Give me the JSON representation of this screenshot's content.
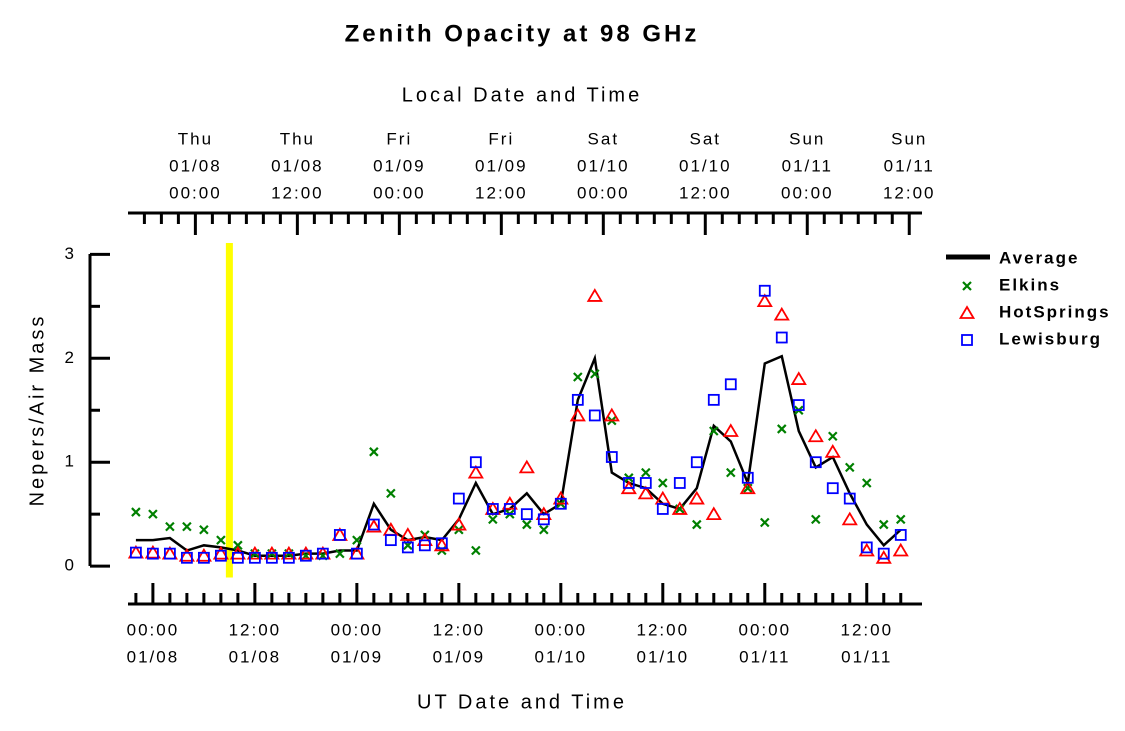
{
  "chart_data": {
    "type": "line",
    "title": "Zenith Opacity at 98 GHz",
    "x2label": "Local Date and Time",
    "xlabel": "UT Date and Time",
    "ylabel": "Nepers/Air Mass",
    "xlim": [
      -3,
      90.5
    ],
    "xticks": [
      {
        "value": 0,
        "label": [
          "00:00",
          "01/08"
        ]
      },
      {
        "value": 12,
        "label": [
          "12:00",
          "01/08"
        ]
      },
      {
        "value": 24,
        "label": [
          "00:00",
          "01/09"
        ]
      },
      {
        "value": 36,
        "label": [
          "12:00",
          "01/09"
        ]
      },
      {
        "value": 48,
        "label": [
          "00:00",
          "01/10"
        ]
      },
      {
        "value": 60,
        "label": [
          "12:00",
          "01/10"
        ]
      },
      {
        "value": 72,
        "label": [
          "00:00",
          "01/11"
        ]
      },
      {
        "value": 84,
        "label": [
          "12:00",
          "01/11"
        ]
      }
    ],
    "xminorticks": [
      -2,
      2,
      4,
      6,
      8,
      10,
      14,
      16,
      18,
      20,
      22,
      26,
      28,
      30,
      32,
      34,
      38,
      40,
      42,
      44,
      46,
      50,
      52,
      54,
      56,
      58,
      62,
      64,
      66,
      68,
      70,
      74,
      76,
      78,
      80,
      82,
      86,
      88
    ],
    "x2lim": [
      -8,
      85.5
    ],
    "x2ticks": [
      {
        "value": 0,
        "label": [
          "Thu",
          "01/08",
          "00:00"
        ]
      },
      {
        "value": 12,
        "label": [
          "Thu",
          "01/08",
          "12:00"
        ]
      },
      {
        "value": 24,
        "label": [
          "Fri",
          "01/09",
          "00:00"
        ]
      },
      {
        "value": 36,
        "label": [
          "Fri",
          "01/09",
          "12:00"
        ]
      },
      {
        "value": 48,
        "label": [
          "Sat",
          "01/10",
          "00:00"
        ]
      },
      {
        "value": 60,
        "label": [
          "Sat",
          "01/10",
          "12:00"
        ]
      },
      {
        "value": 72,
        "label": [
          "Sun",
          "01/11",
          "00:00"
        ]
      },
      {
        "value": 84,
        "label": [
          "Sun",
          "01/11",
          "12:00"
        ]
      }
    ],
    "x2minorticks": [
      -6,
      -4,
      -2,
      2,
      4,
      6,
      8,
      10,
      14,
      16,
      18,
      20,
      22,
      26,
      28,
      30,
      32,
      34,
      38,
      40,
      42,
      44,
      46,
      50,
      52,
      54,
      56,
      58,
      62,
      64,
      66,
      68,
      70,
      74,
      76,
      78,
      80,
      82
    ],
    "ylim": [
      -0.1,
      3.1
    ],
    "yticks": [
      0,
      1,
      2,
      3
    ],
    "yminorticks": [
      0.5,
      1.5,
      2.5
    ],
    "vline": {
      "x": 9,
      "color": "#ffff00"
    },
    "x": [
      -2,
      0,
      2,
      4,
      6,
      8,
      10,
      12,
      14,
      16,
      18,
      20,
      22,
      24,
      26,
      28,
      30,
      32,
      34,
      36,
      38,
      40,
      42,
      44,
      46,
      48,
      50,
      52,
      54,
      56,
      58,
      60,
      62,
      64,
      66,
      68,
      70,
      72,
      74,
      76,
      78,
      80,
      82,
      84,
      86,
      88
    ],
    "series": [
      {
        "name": "Average",
        "color": "#000000",
        "marker": "line",
        "values": [
          0.25,
          0.25,
          0.27,
          0.15,
          0.2,
          0.18,
          0.15,
          0.1,
          0.1,
          0.1,
          0.12,
          0.12,
          0.15,
          0.15,
          0.6,
          0.35,
          0.25,
          0.28,
          0.25,
          0.45,
          0.8,
          0.5,
          0.55,
          0.7,
          0.5,
          0.6,
          1.6,
          2.0,
          0.9,
          0.8,
          0.75,
          0.6,
          0.55,
          0.75,
          1.35,
          1.2,
          0.8,
          1.95,
          2.02,
          1.3,
          0.95,
          1.05,
          0.7,
          0.4,
          0.2,
          0.35
        ]
      },
      {
        "name": "Elkins",
        "color": "#008000",
        "marker": "x",
        "values": [
          0.52,
          0.5,
          0.38,
          0.38,
          0.35,
          0.25,
          0.2,
          0.12,
          0.12,
          0.12,
          0.1,
          0.1,
          0.12,
          0.25,
          1.1,
          0.7,
          0.2,
          0.3,
          0.15,
          0.35,
          0.15,
          0.45,
          0.5,
          0.4,
          0.35,
          0.6,
          1.82,
          1.85,
          1.4,
          0.85,
          0.9,
          0.8,
          0.55,
          0.4,
          1.3,
          0.9,
          0.75,
          0.42,
          1.32,
          1.5,
          0.45,
          1.25,
          0.95,
          0.8,
          0.4,
          0.45
        ]
      },
      {
        "name": "HotSprings",
        "color": "#ff0000",
        "marker": "triangle",
        "values": [
          0.13,
          0.13,
          0.12,
          0.1,
          0.1,
          0.12,
          0.12,
          0.12,
          0.12,
          0.12,
          0.12,
          0.12,
          0.3,
          0.12,
          0.38,
          0.35,
          0.3,
          0.25,
          0.2,
          0.4,
          0.9,
          0.55,
          0.6,
          0.95,
          0.5,
          0.65,
          1.45,
          2.6,
          1.45,
          0.75,
          0.7,
          0.65,
          0.55,
          0.65,
          0.5,
          1.3,
          0.75,
          2.55,
          2.42,
          1.8,
          1.25,
          1.1,
          0.45,
          0.15,
          0.08,
          0.15
        ]
      },
      {
        "name": "Lewisburg",
        "color": "#0000ff",
        "marker": "square",
        "values": [
          0.13,
          0.12,
          0.12,
          0.08,
          0.08,
          0.1,
          0.08,
          0.08,
          0.08,
          0.08,
          0.1,
          0.12,
          0.3,
          0.12,
          0.4,
          0.25,
          0.18,
          0.2,
          0.22,
          0.65,
          1.0,
          0.55,
          0.55,
          0.5,
          0.45,
          0.6,
          1.6,
          1.45,
          1.05,
          0.8,
          0.8,
          0.55,
          0.8,
          1.0,
          1.6,
          1.75,
          0.85,
          2.65,
          2.2,
          1.55,
          1.0,
          0.75,
          0.65,
          0.18,
          0.12,
          0.3
        ]
      }
    ]
  }
}
